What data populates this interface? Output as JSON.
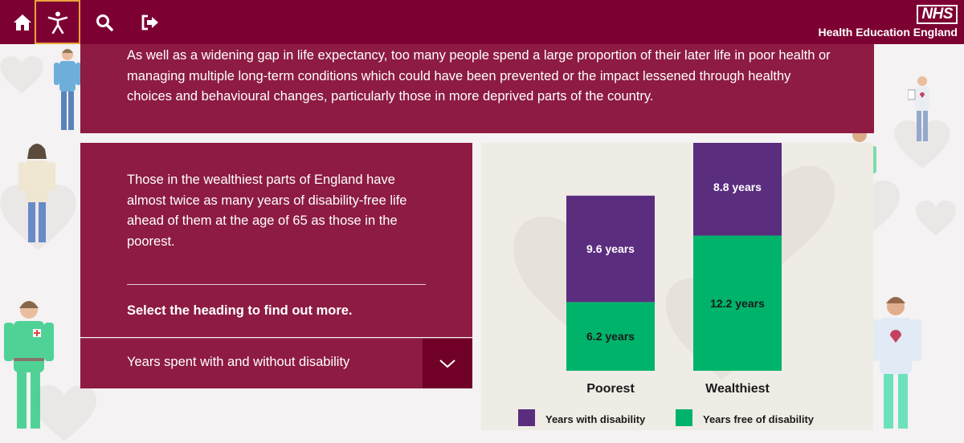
{
  "brand": {
    "logo": "NHS",
    "name": "Health Education England"
  },
  "nav": [
    {
      "id": "home",
      "icon": "home-icon",
      "active": false
    },
    {
      "id": "accessibility",
      "icon": "accessibility-icon",
      "active": true
    },
    {
      "id": "search",
      "icon": "search-icon",
      "active": false
    },
    {
      "id": "exit",
      "icon": "exit-icon",
      "active": false
    }
  ],
  "intro": {
    "text": "As well as a widening gap in life expectancy, too many people spend a large proportion of their later life in poor health or managing multiple long-term conditions which could have been prevented or the impact lessened through healthy choices and behavioural changes, particularly those in more deprived parts of the country."
  },
  "card": {
    "text": "Those in the wealthiest parts of England have almost twice as many years of disability-free life ahead of them at the age of 65 as those in the poorest.",
    "cta": "Select the heading to find out more."
  },
  "accordion": {
    "label": "Years spent with and without disability",
    "icon": "chevron-down-icon",
    "expanded": false
  },
  "colors": {
    "brand": "#7d0033",
    "panel": "#8d1b43",
    "accent": "#e8a33c",
    "with_disability": "#5b2d7f",
    "free_of_disability": "#00b36b"
  },
  "chart_data": {
    "type": "bar",
    "stacked": true,
    "categories": [
      "Poorest",
      "Wealthiest"
    ],
    "series": [
      {
        "name": "Years free of disability",
        "values": [
          6.2,
          12.2
        ],
        "labels": [
          "6.2 years",
          "12.2 years"
        ],
        "color": "#00b36b"
      },
      {
        "name": "Years with disability",
        "values": [
          9.6,
          8.8
        ],
        "labels": [
          "9.6 years",
          "8.8 years"
        ],
        "color": "#5b2d7f"
      }
    ],
    "legend": [
      {
        "label": "Years with disability",
        "color": "#5b2d7f"
      },
      {
        "label": "Years free of disability",
        "color": "#00b36b"
      }
    ],
    "legend_position": "bottom",
    "ylim": [
      0,
      21
    ],
    "grid": false,
    "title": "",
    "xlabel": "",
    "ylabel": ""
  }
}
